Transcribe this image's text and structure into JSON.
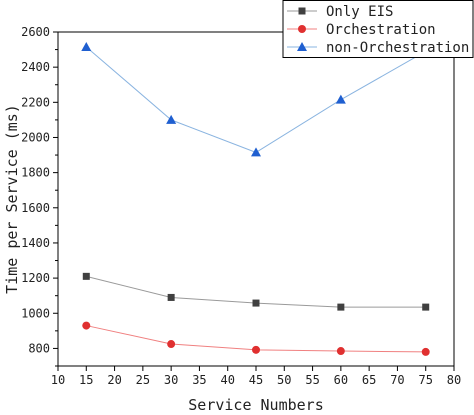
{
  "chart_data": {
    "type": "line",
    "title": "",
    "xlabel": "Service Numbers",
    "ylabel": "Time per Service (ms)",
    "xlim": [
      10,
      80
    ],
    "ylim": [
      700,
      2600
    ],
    "x_ticks": [
      10,
      15,
      20,
      25,
      30,
      35,
      40,
      45,
      50,
      55,
      60,
      65,
      70,
      75,
      80
    ],
    "y_ticks": [
      800,
      1000,
      1200,
      1400,
      1600,
      1800,
      2000,
      2200,
      2400,
      2600
    ],
    "x": [
      15,
      30,
      45,
      60,
      75
    ],
    "legend_position": "top-right",
    "grid": false,
    "series": [
      {
        "name": "Only EIS",
        "values": [
          1210,
          1090,
          1058,
          1035,
          1035
        ],
        "color": "#404040",
        "line_color": "#9a9a9a",
        "marker": "square"
      },
      {
        "name": "Orchestration",
        "values": [
          930,
          825,
          792,
          785,
          780
        ],
        "color": "#e03030",
        "line_color": "#f08080",
        "marker": "circle"
      },
      {
        "name": "non-Orchestration",
        "values": [
          2515,
          2100,
          1915,
          2215,
          2490
        ],
        "color": "#1f5fd0",
        "line_color": "#8ab4e0",
        "marker": "triangle"
      }
    ]
  }
}
